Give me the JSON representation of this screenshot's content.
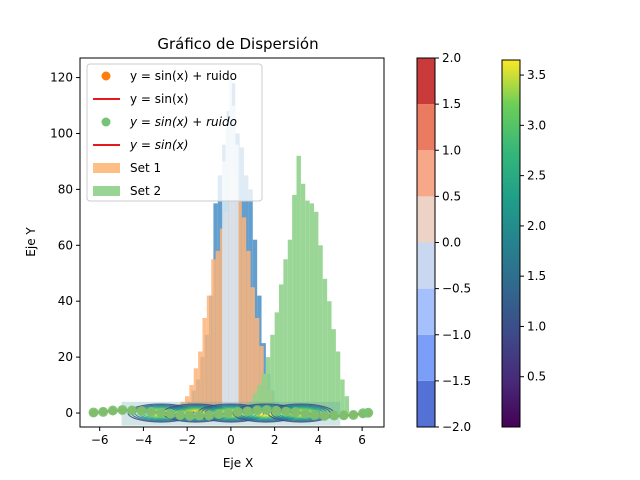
{
  "chart_data": {
    "type": "scatter",
    "title": "Gráfico de Dispersión",
    "xlabel": "Eje X",
    "ylabel": "Eje Y",
    "xlim": [
      -6.9,
      7.0
    ],
    "ylim": [
      -5,
      127
    ],
    "xticks": [
      -6,
      -4,
      -2,
      0,
      2,
      4,
      6
    ],
    "yticks": [
      0,
      20,
      40,
      60,
      80,
      100,
      120
    ],
    "legend_position": "top-left",
    "legend": [
      {
        "label": "y = sin(x) + ruido",
        "kind": "dot",
        "color": "#ff7f0e"
      },
      {
        "label": "y = sin(x)",
        "kind": "line",
        "color": "#e41a1c"
      },
      {
        "label": "y = sin(x) + ruido",
        "math": true,
        "kind": "dot",
        "color": "#74c476"
      },
      {
        "label": "y = sin(x)",
        "math": true,
        "kind": "line",
        "color": "#e41a1c"
      },
      {
        "label": "Set 1",
        "kind": "patch",
        "color": "#fdbf86"
      },
      {
        "label": "Set 2",
        "kind": "patch",
        "color": "#98d594"
      }
    ],
    "series": [
      {
        "name": "y = sin(x) + ruido",
        "kind": "scatter",
        "color": "#ff7f0e",
        "x": [
          -6.28,
          -5.84,
          -5.4,
          -4.96,
          -4.52,
          -4.08,
          -3.64,
          -3.2,
          -2.76,
          -2.32,
          -1.88,
          -1.44,
          -1.0,
          -0.56,
          -0.12,
          0.32,
          0.76,
          1.2,
          1.64,
          2.08,
          2.52,
          2.96,
          3.4,
          3.84,
          4.28,
          4.72,
          5.16,
          5.6,
          6.04,
          6.28
        ],
        "y": [
          0.1,
          0.5,
          0.8,
          1.0,
          1.0,
          0.8,
          0.5,
          0.0,
          -0.4,
          -0.7,
          -0.9,
          -1.0,
          -0.8,
          -0.5,
          -0.1,
          0.3,
          0.7,
          0.9,
          1.0,
          0.9,
          0.6,
          0.2,
          -0.3,
          -0.6,
          -0.9,
          -1.0,
          -0.9,
          -0.6,
          -0.2,
          0.0
        ]
      },
      {
        "name": "y = sin(x) + ruido",
        "kind": "scatter",
        "color": "#74c476",
        "x": [
          -6.28,
          -5.84,
          -5.4,
          -4.96,
          -4.52,
          -4.08,
          -3.64,
          -3.2,
          -2.76,
          -2.32,
          -1.88,
          -1.44,
          -1.0,
          -0.56,
          -0.12,
          0.32,
          0.76,
          1.2,
          1.64,
          2.08,
          2.52,
          2.96,
          3.4,
          3.84,
          4.28,
          4.72,
          5.16,
          5.6,
          6.04,
          6.28
        ],
        "y": [
          0.2,
          0.4,
          0.9,
          1.1,
          0.9,
          0.7,
          0.4,
          0.1,
          -0.3,
          -0.8,
          -1.0,
          -0.9,
          -0.9,
          -0.4,
          0.0,
          0.4,
          0.6,
          1.0,
          1.1,
          0.8,
          0.5,
          0.3,
          -0.2,
          -0.7,
          -1.0,
          -0.9,
          -0.8,
          -0.7,
          -0.1,
          0.1
        ]
      },
      {
        "name": "y = sin(x)",
        "kind": "line",
        "color": "#e41a1c",
        "function": "sin",
        "xrange": [
          -6.28,
          6.28
        ]
      }
    ],
    "histograms": [
      {
        "color": "#3b86c2",
        "opacity": 0.8,
        "bins": [
          [
            -2.4,
            -2.2,
            1
          ],
          [
            -2.2,
            -2.0,
            2
          ],
          [
            -2.0,
            -1.8,
            4
          ],
          [
            -1.8,
            -1.6,
            8
          ],
          [
            -1.6,
            -1.4,
            12
          ],
          [
            -1.4,
            -1.2,
            20
          ],
          [
            -1.2,
            -1.0,
            28
          ],
          [
            -1.0,
            -0.8,
            42
          ],
          [
            -0.8,
            -0.6,
            75
          ],
          [
            -0.6,
            -0.4,
            85
          ],
          [
            -0.4,
            -0.2,
            96
          ],
          [
            -0.2,
            0.0,
            108
          ],
          [
            0.0,
            0.2,
            118
          ],
          [
            0.2,
            0.4,
            100
          ],
          [
            0.4,
            0.6,
            95
          ],
          [
            0.6,
            0.8,
            85
          ],
          [
            0.8,
            1.0,
            80
          ],
          [
            1.0,
            1.2,
            62
          ],
          [
            1.2,
            1.4,
            42
          ],
          [
            1.4,
            1.6,
            25
          ],
          [
            1.6,
            1.8,
            14
          ],
          [
            1.8,
            2.0,
            8
          ],
          [
            2.0,
            2.2,
            4
          ],
          [
            2.2,
            2.4,
            2
          ]
        ]
      },
      {
        "color": "#fdb47a",
        "opacity": 0.85,
        "bins": [
          [
            -2.5,
            -2.3,
            3
          ],
          [
            -2.3,
            -2.1,
            4
          ],
          [
            -2.1,
            -1.9,
            6
          ],
          [
            -1.9,
            -1.7,
            10
          ],
          [
            -1.7,
            -1.5,
            16
          ],
          [
            -1.5,
            -1.3,
            22
          ],
          [
            -1.3,
            -1.1,
            34
          ],
          [
            -1.1,
            -0.9,
            42
          ],
          [
            -0.9,
            -0.7,
            55
          ],
          [
            -0.7,
            -0.5,
            58
          ],
          [
            -0.5,
            -0.3,
            66
          ],
          [
            -0.3,
            -0.1,
            72
          ],
          [
            -0.1,
            0.1,
            88
          ],
          [
            0.1,
            0.3,
            85
          ],
          [
            0.3,
            0.5,
            76
          ],
          [
            0.5,
            0.7,
            70
          ],
          [
            0.7,
            0.9,
            58
          ],
          [
            0.9,
            1.1,
            45
          ],
          [
            1.1,
            1.3,
            34
          ],
          [
            1.3,
            1.5,
            24
          ],
          [
            1.5,
            1.7,
            14
          ],
          [
            1.7,
            1.9,
            8
          ],
          [
            1.9,
            2.1,
            4
          ],
          [
            2.1,
            2.3,
            2
          ]
        ]
      },
      {
        "color": "#8fd18b",
        "opacity": 0.9,
        "bins": [
          [
            0.6,
            0.8,
            2
          ],
          [
            0.8,
            1.0,
            4
          ],
          [
            1.0,
            1.2,
            7
          ],
          [
            1.2,
            1.4,
            10
          ],
          [
            1.4,
            1.6,
            14
          ],
          [
            1.6,
            1.8,
            20
          ],
          [
            1.8,
            2.0,
            28
          ],
          [
            2.0,
            2.2,
            36
          ],
          [
            2.2,
            2.4,
            46
          ],
          [
            2.4,
            2.6,
            55
          ],
          [
            2.6,
            2.8,
            62
          ],
          [
            2.8,
            3.0,
            78
          ],
          [
            3.0,
            3.2,
            92
          ],
          [
            3.2,
            3.4,
            82
          ],
          [
            3.4,
            3.6,
            76
          ],
          [
            3.6,
            3.8,
            75
          ],
          [
            3.8,
            4.0,
            72
          ],
          [
            4.0,
            4.2,
            60
          ],
          [
            4.2,
            4.4,
            48
          ],
          [
            4.4,
            4.6,
            40
          ],
          [
            4.6,
            4.8,
            30
          ],
          [
            4.8,
            5.0,
            22
          ],
          [
            5.0,
            5.2,
            12
          ],
          [
            5.2,
            5.4,
            6
          ]
        ]
      },
      {
        "color": "#d7e6f2",
        "opacity": 0.9,
        "bins": [
          [
            -0.1,
            0.05,
            122
          ],
          [
            0.05,
            0.2,
            110
          ],
          [
            -0.25,
            -0.1,
            104
          ],
          [
            0.2,
            0.35,
            96
          ],
          [
            -0.4,
            -0.25,
            90
          ]
        ]
      }
    ],
    "colorbars": [
      {
        "cmap": "coolwarm",
        "range": [
          -2.0,
          2.0
        ],
        "ticks": [
          "-2.0",
          "-1.5",
          "-1.0",
          "-0.5",
          "0.0",
          "0.5",
          "1.0",
          "1.5",
          "2.0"
        ],
        "levels": [
          "#5471d6",
          "#7b9ff9",
          "#a4c1fe",
          "#c9d8f0",
          "#ecd3c5",
          "#f7a889",
          "#ea7b60",
          "#c93b3b"
        ]
      },
      {
        "cmap": "viridis",
        "range": [
          0.0,
          3.65
        ],
        "ticks": [
          "0.5",
          "1.0",
          "1.5",
          "2.0",
          "2.5",
          "3.0",
          "3.5"
        ],
        "tick_values": [
          0.5,
          1.0,
          1.5,
          2.0,
          2.5,
          3.0,
          3.5
        ]
      }
    ]
  }
}
